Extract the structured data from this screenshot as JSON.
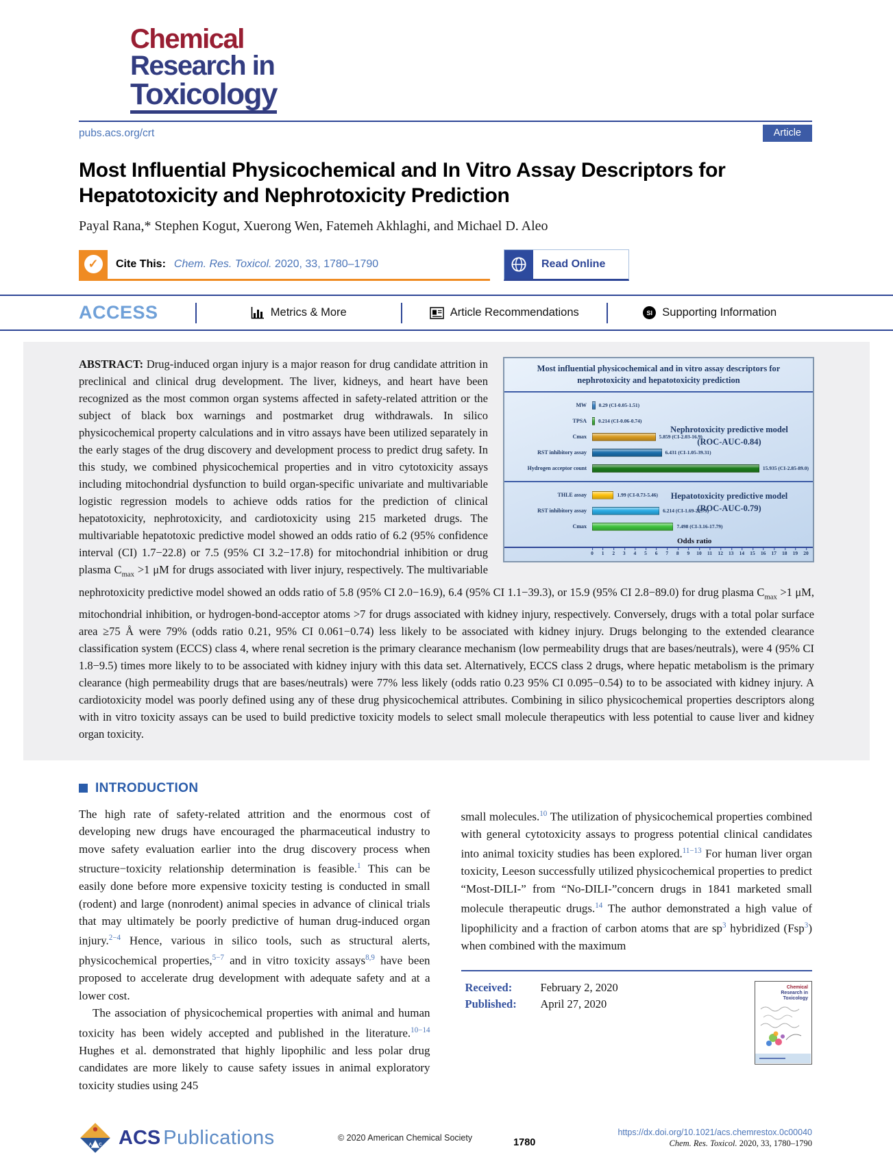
{
  "masthead": {
    "logo_line1": "Chemical",
    "logo_line2": "Research in",
    "logo_line3": "Toxicology",
    "site_url": "pubs.acs.org/crt",
    "article_badge": "Article"
  },
  "header": {
    "title_line1": "Most Influential Physicochemical and In Vitro Assay Descriptors for",
    "title_line2": "Hepatotoxicity and Nephrotoxicity Prediction",
    "authors": "Payal Rana,* Stephen Kogut, Xuerong Wen, Fatemeh Akhlaghi, and Michael D. Aleo",
    "cite_label": "Cite This:",
    "cite_journal": "Chem. Res. Toxicol.",
    "cite_rest": " 2020, 33, 1780–1790",
    "read_online": "Read Online"
  },
  "access_bar": {
    "access": "ACCESS",
    "metrics": "Metrics & More",
    "recommendations": "Article Recommendations",
    "supporting": "Supporting Information",
    "si_badge": "SI"
  },
  "abstract": {
    "label": "ABSTRACT:",
    "text": "Drug-induced organ injury is a major reason for drug candidate attrition in preclinical and clinical drug development. The liver, kidneys, and heart have been recognized as the most common organ systems affected in safety-related attrition or the subject of black box warnings and postmarket drug withdrawals. In silico physicochemical property calculations and in vitro assays have been utilized separately in the early stages of the drug discovery and development process to predict drug safety. In this study, we combined physicochemical properties and in vitro cytotoxicity assays including mitochondrial dysfunction to build organ-specific univariate and multivariable logistic regression models to achieve odds ratios for the prediction of clinical hepatotoxicity, nephrotoxicity, and cardiotoxicity using 215 marketed drugs. The multivariable hepatotoxic predictive model showed an odds ratio of 6.2 (95% confidence interval (CI) 1.7−22.8) or 7.5 (95% CI 3.2−17.8) for mitochondrial inhibition or drug plasma C~max~ >1 μM for drugs associated with liver injury, respectively. The multivariable nephrotoxicity predictive model showed an odds ratio of 5.8 (95% CI 2.0−16.9), 6.4 (95% CI 1.1−39.3), or 15.9 (95% CI 2.8−89.0) for drug plasma C~max~ >1 μM, mitochondrial inhibition, or hydrogen-bond-acceptor atoms >7 for drugs associated with kidney injury, respectively. Conversely, drugs with a total polar surface area ≥75 Å were 79% (odds ratio 0.21, 95% CI 0.061−0.74) less likely to be associated with kidney injury. Drugs belonging to the extended clearance classification system (ECCS) class 4, where renal secretion is the primary clearance mechanism (low permeability drugs that are bases/neutrals), were 4 (95% CI 1.8−9.5) times more likely to to be associated with kidney injury with this data set. Alternatively, ECCS class 2 drugs, where hepatic metabolism is the primary clearance (high permeability drugs that are bases/neutrals) were 77% less likely (odds ratio 0.23 95% CI 0.095−0.54) to to be associated with kidney injury. A cardiotoxicity model was poorly defined using any of these drug physicochemical attributes. Combining in silico physicochemical properties descriptors along with in vitro toxicity assays can be used to build predictive toxicity models to select small molecule therapeutics with less potential to cause liver and kidney organ toxicity."
  },
  "chart_data": {
    "type": "bar",
    "title": "Most influential physicochemical and in vitro assay descriptors for nephrotoxicity and hepatotoxicity prediction",
    "xlabel": "Odds ratio",
    "xlim": [
      0,
      20
    ],
    "xticks": [
      0,
      1,
      2,
      3,
      4,
      5,
      6,
      7,
      8,
      9,
      10,
      11,
      12,
      13,
      14,
      15,
      16,
      17,
      18,
      19,
      20
    ],
    "orientation": "horizontal",
    "panels": [
      {
        "name": "Nephrotoxicity predictive model",
        "roc": "(ROC-AUC-0.84)",
        "bars": [
          {
            "label": "MW",
            "value": 0.29,
            "annotation": "0.29 (CI-0.05-1.51)",
            "color": "#3d85c8"
          },
          {
            "label": "TPSA",
            "value": 0.214,
            "annotation": "0.214 (CI-0.06-0.74)",
            "color": "#43b13f"
          },
          {
            "label": "Cmax",
            "value": 5.859,
            "annotation": "5.859 (CI-2.03-16.9)",
            "color": "#d89b20"
          },
          {
            "label": "RST inhibitory assay",
            "value": 6.431,
            "annotation": "6.431 (CI-1.05-39.31)",
            "color": "#1c6fad"
          },
          {
            "label": "Hydrogen acceptor count",
            "value": 15.935,
            "annotation": "15.935 (CI-2.85-89.0)",
            "color": "#1d7d1d"
          }
        ]
      },
      {
        "name": "Hepatotoxicity predictive model",
        "roc": "(ROC-AUC-0.79)",
        "bars": [
          {
            "label": "THLE assay",
            "value": 1.99,
            "annotation": "1.99 (CI-0.73-5.46)",
            "color": "#ffc20e"
          },
          {
            "label": "RST inhibitory assay",
            "value": 6.214,
            "annotation": "6.214 (CI-1.69-22.79)",
            "color": "#2aabe4"
          },
          {
            "label": "Cmax",
            "value": 7.498,
            "annotation": "7.498 (CI-3.16-17.79)",
            "color": "#3fc23d"
          }
        ]
      }
    ]
  },
  "introduction": {
    "heading": "INTRODUCTION",
    "left_col_p1": "The high rate of safety-related attrition and the enormous cost of developing new drugs have encouraged the pharmaceutical industry to move safety evaluation earlier into the drug discovery process when structure−toxicity relationship determination is feasible.^1^ This can be easily done before more expensive toxicity testing is conducted in small (rodent) and large (nonrodent) animal species in advance of clinical trials that may ultimately be poorly predictive of human drug-induced organ injury.^2−4^ Hence, various in silico tools, such as structural alerts, physicochemical properties,^5−7^ and in vitro toxicity assays^8,9^ have been proposed to accelerate drug development with adequate safety and at a lower cost.",
    "left_col_p2": "The association of physicochemical properties with animal and human toxicity has been widely accepted and published in the literature.^10−14^ Hughes et al. demonstrated that highly lipophilic and less polar drug candidates are more likely to cause safety issues in animal exploratory toxicity studies using 245",
    "right_col_p1": "small molecules.^10^ The utilization of physicochemical properties combined with general cytotoxicity assays to progress potential clinical candidates into animal toxicity studies has been explored.^11−13^ For human liver organ toxicity, Leeson successfully utilized physicochemical properties to predict “Most-DILI-” from “No-DILI-”concern drugs in 1841 marketed small molecule therapeutic drugs.^14^ The author demonstrated a high value of lipophilicity and a fraction of carbon atoms that are sp^3^ hybridized (Fsp^3^) when combined with the maximum",
    "received_label": "Received:",
    "received_date": "February 2, 2020",
    "published_label": "Published:",
    "published_date": "April 27, 2020"
  },
  "footer": {
    "acs": "ACS",
    "publications": "Publications",
    "copyright": "© 2020 American Chemical Society",
    "page_number": "1780",
    "doi": "https://dx.doi.org/10.1021/acs.chemrestox.0c00040",
    "citation_journal": "Chem. Res. Toxicol.",
    "citation_rest": " 2020, 33, 1780–1790"
  }
}
